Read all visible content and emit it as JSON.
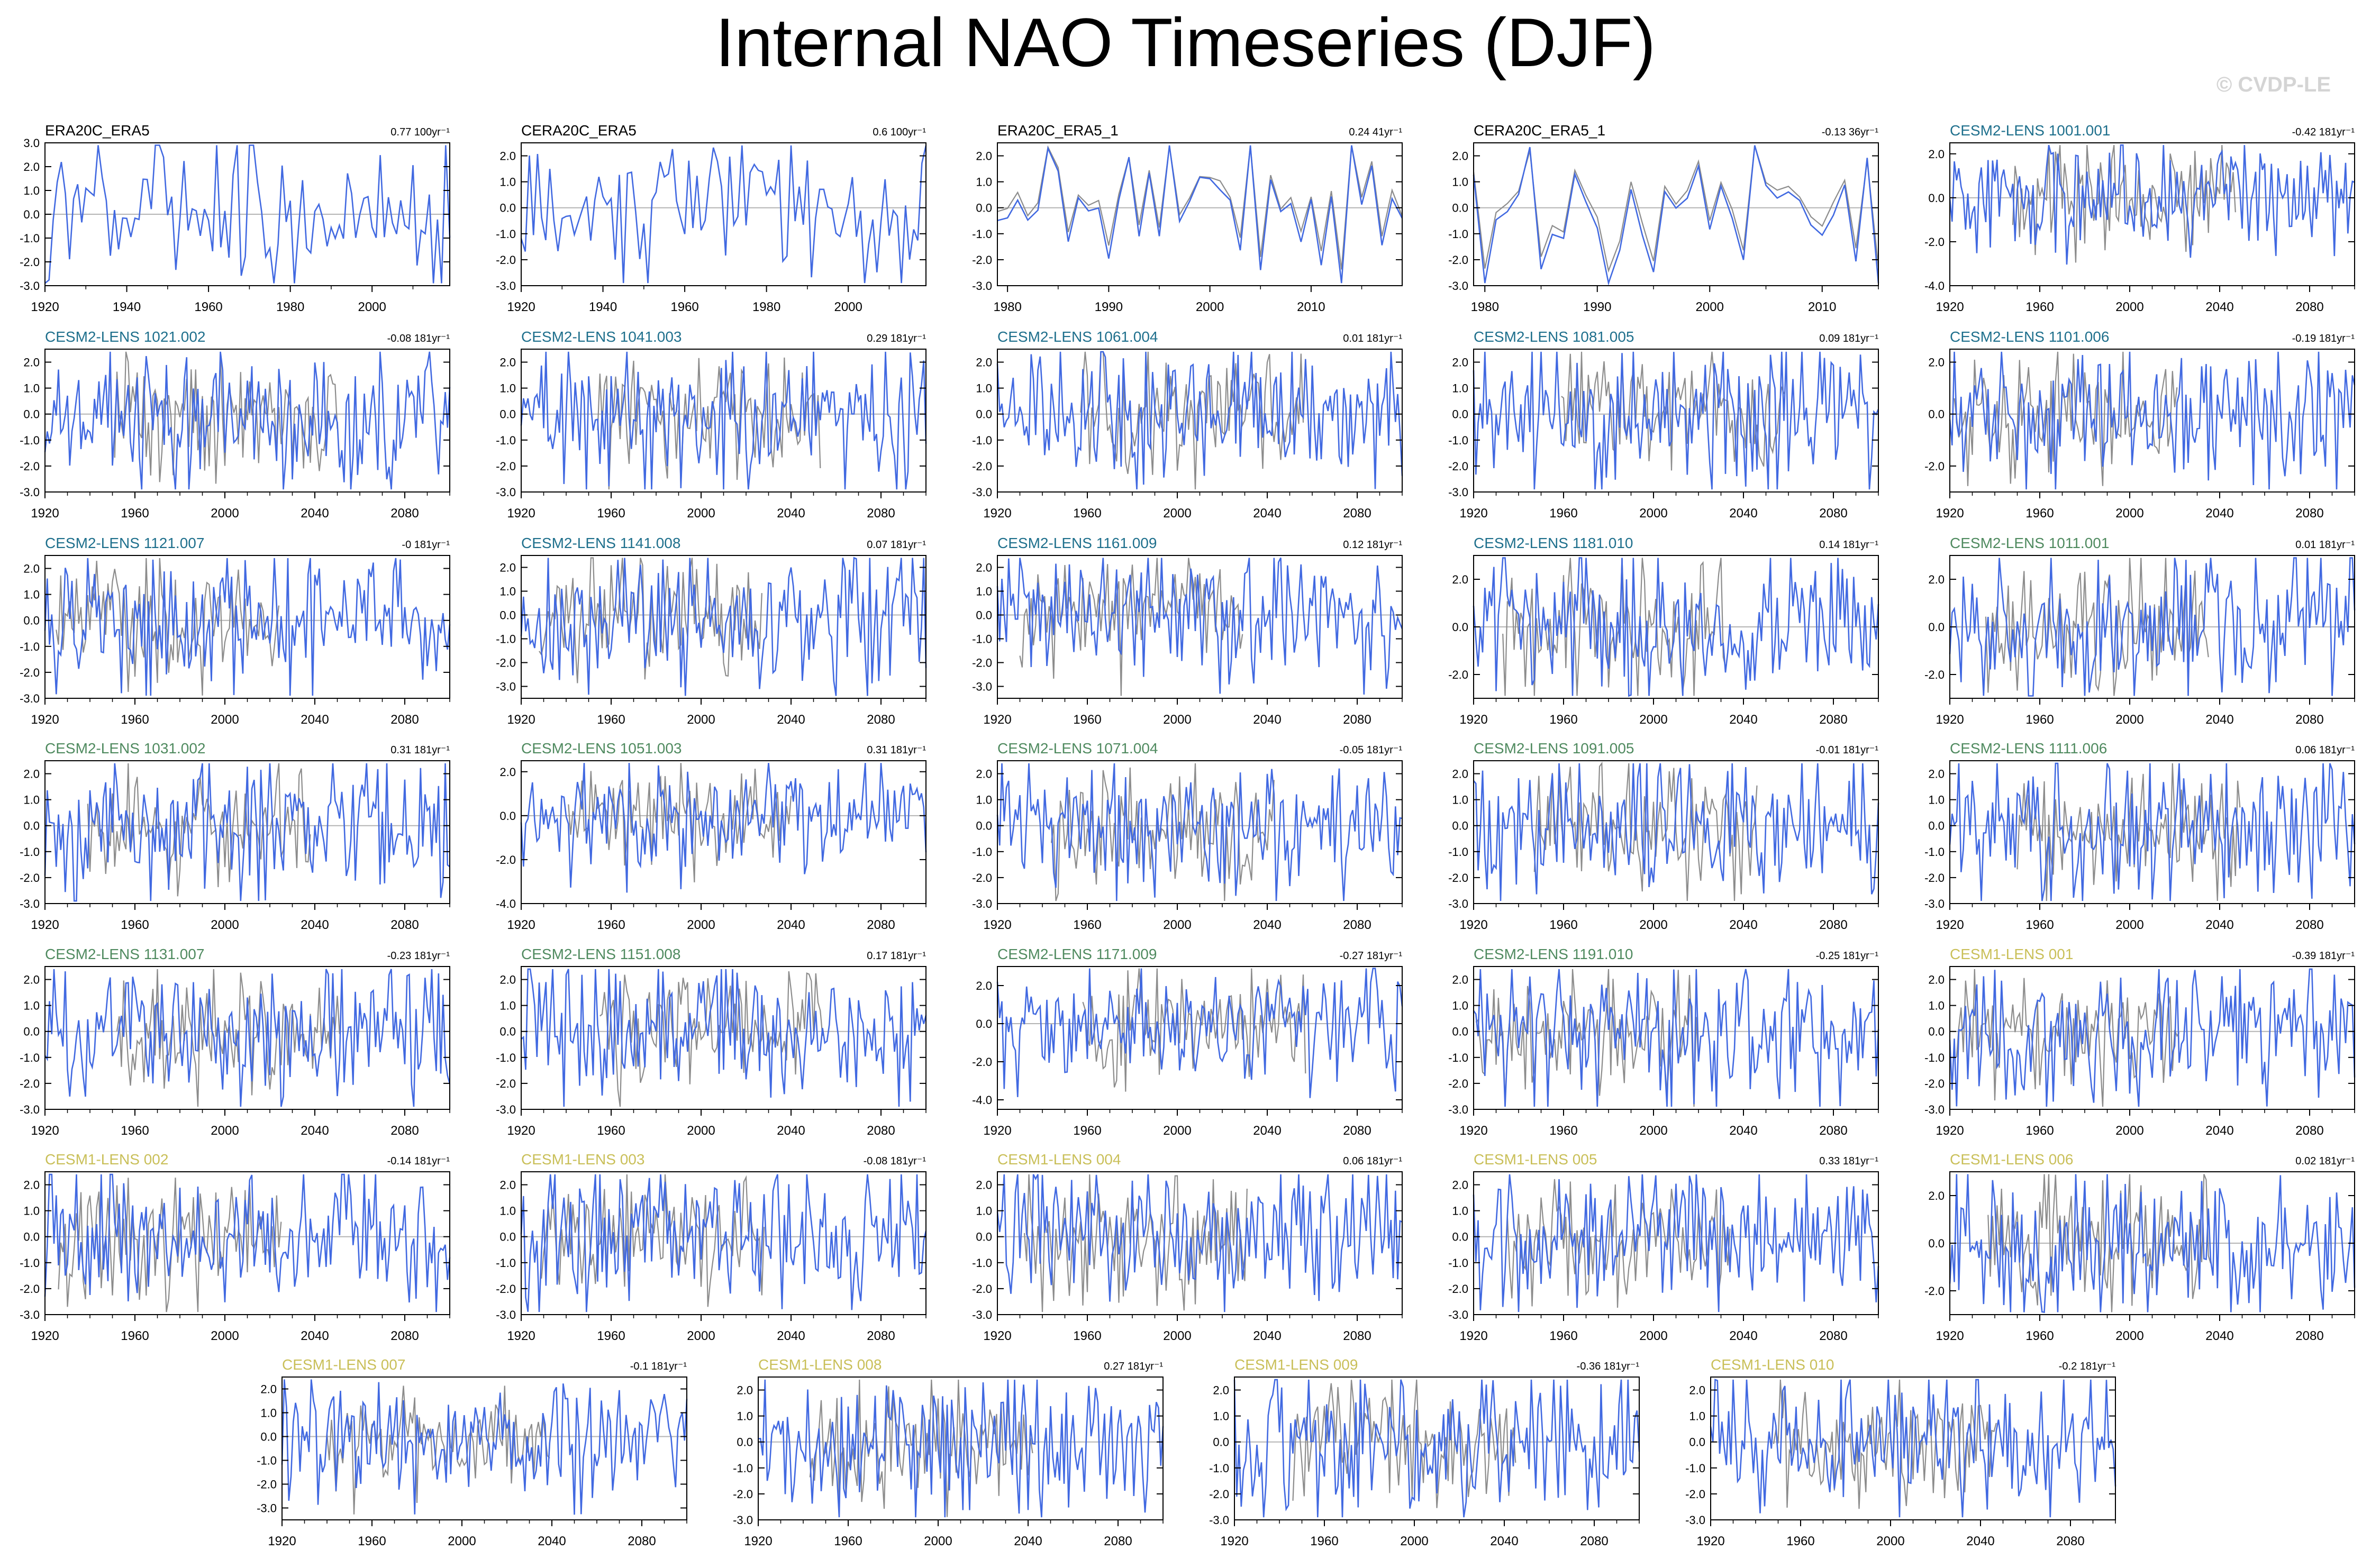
{
  "title": "Internal NAO Timeseries (DJF)",
  "watermark": "© CVDP-LE",
  "colors": {
    "obs": "#000000",
    "cesm2_macro": "#1e6f8c",
    "cesm2_smbb": "#4f8a5f",
    "cesm1": "#c9bf58",
    "model_line": "#4169e1",
    "obs_line": "#8c8c8c",
    "zero_line": "#b4b4b4"
  },
  "chart_data": [
    {
      "type": "line",
      "title": "ERA20C_ERA5",
      "trend": "0.77 100yr⁻¹",
      "group": "obs",
      "xlim": [
        1920,
        2019
      ],
      "ylim": [
        -3.0,
        3.0
      ],
      "yticks": [
        "3.0",
        "2.0",
        "1.0",
        "0.0",
        "-1.0",
        "-2.0",
        "-3.0"
      ],
      "xticks": [
        "1920",
        "1940",
        "1960",
        "1980",
        "2000"
      ]
    },
    {
      "type": "line",
      "title": "CERA20C_ERA5",
      "trend": "0.6 100yr⁻¹",
      "group": "obs",
      "xlim": [
        1920,
        2019
      ],
      "ylim": [
        -3.0,
        2.5
      ],
      "yticks": [
        "2.0",
        "1.0",
        "0.0",
        "-1.0",
        "-2.0",
        "-3.0"
      ],
      "xticks": [
        "1920",
        "1940",
        "1960",
        "1980",
        "2000"
      ]
    },
    {
      "type": "line",
      "title": "ERA20C_ERA5_1",
      "trend": "0.24 41yr⁻¹",
      "group": "obs",
      "xlim": [
        1979,
        2019
      ],
      "ylim": [
        -3.0,
        2.5
      ],
      "yticks": [
        "2.0",
        "1.0",
        "0.0",
        "-1.0",
        "-2.0",
        "-3.0"
      ],
      "xticks": [
        "1980",
        "1990",
        "2000",
        "2010"
      ],
      "overlay": true
    },
    {
      "type": "line",
      "title": "CERA20C_ERA5_1",
      "trend": "-0.13 36yr⁻¹",
      "group": "obs",
      "xlim": [
        1979,
        2015
      ],
      "ylim": [
        -3.0,
        2.5
      ],
      "yticks": [
        "2.0",
        "1.0",
        "0.0",
        "-1.0",
        "-2.0",
        "-3.0"
      ],
      "xticks": [
        "1980",
        "1990",
        "2000",
        "2010"
      ],
      "overlay": true
    },
    {
      "type": "line",
      "title": "CESM2-LENS 1001.001",
      "trend": "-0.42 181yr⁻¹",
      "group": "cesm2_macro",
      "xlim": [
        1920,
        2100
      ],
      "ylim": [
        -4.0,
        2.5
      ],
      "yticks": [
        "2.0",
        "0.0",
        "-2.0",
        "-4.0"
      ],
      "xticks": [
        "1920",
        "1960",
        "2000",
        "2040",
        "2080"
      ]
    },
    {
      "type": "line",
      "title": "CESM2-LENS 1021.002",
      "trend": "-0.08 181yr⁻¹",
      "group": "cesm2_macro",
      "xlim": [
        1920,
        2100
      ],
      "ylim": [
        -3.0,
        2.5
      ],
      "yticks": [
        "2.0",
        "1.0",
        "0.0",
        "-1.0",
        "-2.0",
        "-3.0"
      ],
      "xticks": [
        "1920",
        "1960",
        "2000",
        "2040",
        "2080"
      ]
    },
    {
      "type": "line",
      "title": "CESM2-LENS 1041.003",
      "trend": "0.29 181yr⁻¹",
      "group": "cesm2_macro",
      "xlim": [
        1920,
        2100
      ],
      "ylim": [
        -3.0,
        2.5
      ],
      "yticks": [
        "2.0",
        "1.0",
        "0.0",
        "-1.0",
        "-2.0",
        "-3.0"
      ],
      "xticks": [
        "1920",
        "1960",
        "2000",
        "2040",
        "2080"
      ]
    },
    {
      "type": "line",
      "title": "CESM2-LENS 1061.004",
      "trend": "0.01 181yr⁻¹",
      "group": "cesm2_macro",
      "xlim": [
        1920,
        2100
      ],
      "ylim": [
        -3.0,
        2.5
      ],
      "yticks": [
        "2.0",
        "1.0",
        "0.0",
        "-1.0",
        "-2.0",
        "-3.0"
      ],
      "xticks": [
        "1920",
        "1960",
        "2000",
        "2040",
        "2080"
      ]
    },
    {
      "type": "line",
      "title": "CESM2-LENS 1081.005",
      "trend": "0.09 181yr⁻¹",
      "group": "cesm2_macro",
      "xlim": [
        1920,
        2100
      ],
      "ylim": [
        -3.0,
        2.5
      ],
      "yticks": [
        "2.0",
        "1.0",
        "0.0",
        "-1.0",
        "-2.0",
        "-3.0"
      ],
      "xticks": [
        "1920",
        "1960",
        "2000",
        "2040",
        "2080"
      ]
    },
    {
      "type": "line",
      "title": "CESM2-LENS 1101.006",
      "trend": "-0.19 181yr⁻¹",
      "group": "cesm2_macro",
      "xlim": [
        1920,
        2100
      ],
      "ylim": [
        -3.0,
        2.5
      ],
      "yticks": [
        "2.0",
        "0.0",
        "-2.0"
      ],
      "xticks": [
        "1920",
        "1960",
        "2000",
        "2040",
        "2080"
      ]
    },
    {
      "type": "line",
      "title": "CESM2-LENS 1121.007",
      "trend": "-0 181yr⁻¹",
      "group": "cesm2_macro",
      "xlim": [
        1920,
        2100
      ],
      "ylim": [
        -3.0,
        2.5
      ],
      "yticks": [
        "2.0",
        "1.0",
        "0.0",
        "-1.0",
        "-2.0",
        "-3.0"
      ],
      "xticks": [
        "1920",
        "1960",
        "2000",
        "2040",
        "2080"
      ]
    },
    {
      "type": "line",
      "title": "CESM2-LENS 1141.008",
      "trend": "0.07 181yr⁻¹",
      "group": "cesm2_macro",
      "xlim": [
        1920,
        2100
      ],
      "ylim": [
        -3.5,
        2.5
      ],
      "yticks": [
        "2.0",
        "1.0",
        "0.0",
        "-1.0",
        "-2.0",
        "-3.0"
      ],
      "xticks": [
        "1920",
        "1960",
        "2000",
        "2040",
        "2080"
      ]
    },
    {
      "type": "line",
      "title": "CESM2-LENS 1161.009",
      "trend": "0.12 181yr⁻¹",
      "group": "cesm2_macro",
      "xlim": [
        1920,
        2100
      ],
      "ylim": [
        -3.5,
        2.5
      ],
      "yticks": [
        "2.0",
        "1.0",
        "0.0",
        "-1.0",
        "-2.0",
        "-3.0"
      ],
      "xticks": [
        "1920",
        "1960",
        "2000",
        "2040",
        "2080"
      ]
    },
    {
      "type": "line",
      "title": "CESM2-LENS 1181.010",
      "trend": "0.14 181yr⁻¹",
      "group": "cesm2_macro",
      "xlim": [
        1920,
        2100
      ],
      "ylim": [
        -3.0,
        3.0
      ],
      "yticks": [
        "2.0",
        "0.0",
        "-2.0"
      ],
      "xticks": [
        "1920",
        "1960",
        "2000",
        "2040",
        "2080"
      ]
    },
    {
      "type": "line",
      "title": "CESM2-LENS 1011.001",
      "trend": "0.01 181yr⁻¹",
      "group": "cesm2_smbb",
      "xlim": [
        1920,
        2100
      ],
      "ylim": [
        -3.0,
        3.0
      ],
      "yticks": [
        "2.0",
        "0.0",
        "-2.0"
      ],
      "xticks": [
        "1920",
        "1960",
        "2000",
        "2040",
        "2080"
      ]
    },
    {
      "type": "line",
      "title": "CESM2-LENS 1031.002",
      "trend": "0.31 181yr⁻¹",
      "group": "cesm2_smbb",
      "xlim": [
        1920,
        2100
      ],
      "ylim": [
        -3.0,
        2.5
      ],
      "yticks": [
        "2.0",
        "1.0",
        "0.0",
        "-1.0",
        "-2.0",
        "-3.0"
      ],
      "xticks": [
        "1920",
        "1960",
        "2000",
        "2040",
        "2080"
      ]
    },
    {
      "type": "line",
      "title": "CESM2-LENS 1051.003",
      "trend": "0.31 181yr⁻¹",
      "group": "cesm2_smbb",
      "xlim": [
        1920,
        2100
      ],
      "ylim": [
        -4.0,
        2.5
      ],
      "yticks": [
        "2.0",
        "0.0",
        "-2.0",
        "-4.0"
      ],
      "xticks": [
        "1920",
        "1960",
        "2000",
        "2040",
        "2080"
      ]
    },
    {
      "type": "line",
      "title": "CESM2-LENS 1071.004",
      "trend": "-0.05 181yr⁻¹",
      "group": "cesm2_smbb",
      "xlim": [
        1920,
        2100
      ],
      "ylim": [
        -3.0,
        2.5
      ],
      "yticks": [
        "2.0",
        "1.0",
        "0.0",
        "-1.0",
        "-2.0",
        "-3.0"
      ],
      "xticks": [
        "1920",
        "1960",
        "2000",
        "2040",
        "2080"
      ]
    },
    {
      "type": "line",
      "title": "CESM2-LENS 1091.005",
      "trend": "-0.01 181yr⁻¹",
      "group": "cesm2_smbb",
      "xlim": [
        1920,
        2100
      ],
      "ylim": [
        -3.0,
        2.5
      ],
      "yticks": [
        "2.0",
        "1.0",
        "0.0",
        "-1.0",
        "-2.0",
        "-3.0"
      ],
      "xticks": [
        "1920",
        "1960",
        "2000",
        "2040",
        "2080"
      ]
    },
    {
      "type": "line",
      "title": "CESM2-LENS 1111.006",
      "trend": "0.06 181yr⁻¹",
      "group": "cesm2_smbb",
      "xlim": [
        1920,
        2100
      ],
      "ylim": [
        -3.0,
        2.5
      ],
      "yticks": [
        "2.0",
        "1.0",
        "0.0",
        "-1.0",
        "-2.0",
        "-3.0"
      ],
      "xticks": [
        "1920",
        "1960",
        "2000",
        "2040",
        "2080"
      ]
    },
    {
      "type": "line",
      "title": "CESM2-LENS 1131.007",
      "trend": "-0.23 181yr⁻¹",
      "group": "cesm2_smbb",
      "xlim": [
        1920,
        2100
      ],
      "ylim": [
        -3.0,
        2.5
      ],
      "yticks": [
        "2.0",
        "1.0",
        "0.0",
        "-1.0",
        "-2.0",
        "-3.0"
      ],
      "xticks": [
        "1920",
        "1960",
        "2000",
        "2040",
        "2080"
      ]
    },
    {
      "type": "line",
      "title": "CESM2-LENS 1151.008",
      "trend": "0.17 181yr⁻¹",
      "group": "cesm2_smbb",
      "xlim": [
        1920,
        2100
      ],
      "ylim": [
        -3.0,
        2.5
      ],
      "yticks": [
        "2.0",
        "1.0",
        "0.0",
        "-1.0",
        "-2.0",
        "-3.0"
      ],
      "xticks": [
        "1920",
        "1960",
        "2000",
        "2040",
        "2080"
      ]
    },
    {
      "type": "line",
      "title": "CESM2-LENS 1171.009",
      "trend": "-0.27 181yr⁻¹",
      "group": "cesm2_smbb",
      "xlim": [
        1920,
        2100
      ],
      "ylim": [
        -4.5,
        3.0
      ],
      "yticks": [
        "2.0",
        "0.0",
        "-2.0",
        "-4.0"
      ],
      "xticks": [
        "1920",
        "1960",
        "2000",
        "2040",
        "2080"
      ]
    },
    {
      "type": "line",
      "title": "CESM2-LENS 1191.010",
      "trend": "-0.25 181yr⁻¹",
      "group": "cesm2_smbb",
      "xlim": [
        1920,
        2100
      ],
      "ylim": [
        -3.0,
        2.5
      ],
      "yticks": [
        "2.0",
        "1.0",
        "0.0",
        "-1.0",
        "-2.0",
        "-3.0"
      ],
      "xticks": [
        "1920",
        "1960",
        "2000",
        "2040",
        "2080"
      ]
    },
    {
      "type": "line",
      "title": "CESM1-LENS 001",
      "trend": "-0.39 181yr⁻¹",
      "group": "cesm1",
      "xlim": [
        1920,
        2100
      ],
      "ylim": [
        -3.0,
        2.5
      ],
      "yticks": [
        "2.0",
        "1.0",
        "0.0",
        "-1.0",
        "-2.0",
        "-3.0"
      ],
      "xticks": [
        "1920",
        "1960",
        "2000",
        "2040",
        "2080"
      ]
    },
    {
      "type": "line",
      "title": "CESM1-LENS 002",
      "trend": "-0.14 181yr⁻¹",
      "group": "cesm1",
      "xlim": [
        1920,
        2100
      ],
      "ylim": [
        -3.0,
        2.5
      ],
      "yticks": [
        "2.0",
        "1.0",
        "0.0",
        "-1.0",
        "-2.0",
        "-3.0"
      ],
      "xticks": [
        "1920",
        "1960",
        "2000",
        "2040",
        "2080"
      ]
    },
    {
      "type": "line",
      "title": "CESM1-LENS 003",
      "trend": "-0.08 181yr⁻¹",
      "group": "cesm1",
      "xlim": [
        1920,
        2100
      ],
      "ylim": [
        -3.0,
        2.5
      ],
      "yticks": [
        "2.0",
        "1.0",
        "0.0",
        "-1.0",
        "-2.0",
        "-3.0"
      ],
      "xticks": [
        "1920",
        "1960",
        "2000",
        "2040",
        "2080"
      ]
    },
    {
      "type": "line",
      "title": "CESM1-LENS 004",
      "trend": "0.06 181yr⁻¹",
      "group": "cesm1",
      "xlim": [
        1920,
        2100
      ],
      "ylim": [
        -3.0,
        2.5
      ],
      "yticks": [
        "2.0",
        "1.0",
        "0.0",
        "-1.0",
        "-2.0",
        "-3.0"
      ],
      "xticks": [
        "1920",
        "1960",
        "2000",
        "2040",
        "2080"
      ]
    },
    {
      "type": "line",
      "title": "CESM1-LENS 005",
      "trend": "0.33 181yr⁻¹",
      "group": "cesm1",
      "xlim": [
        1920,
        2100
      ],
      "ylim": [
        -3.0,
        2.5
      ],
      "yticks": [
        "2.0",
        "1.0",
        "0.0",
        "-1.0",
        "-2.0",
        "-3.0"
      ],
      "xticks": [
        "1920",
        "1960",
        "2000",
        "2040",
        "2080"
      ]
    },
    {
      "type": "line",
      "title": "CESM1-LENS 006",
      "trend": "0.02 181yr⁻¹",
      "group": "cesm1",
      "xlim": [
        1920,
        2100
      ],
      "ylim": [
        -3.0,
        3.0
      ],
      "yticks": [
        "2.0",
        "0.0",
        "-2.0"
      ],
      "xticks": [
        "1920",
        "1960",
        "2000",
        "2040",
        "2080"
      ]
    },
    {
      "type": "line",
      "title": "CESM1-LENS 007",
      "trend": "-0.1 181yr⁻¹",
      "group": "cesm1",
      "xlim": [
        1920,
        2100
      ],
      "ylim": [
        -3.5,
        2.5
      ],
      "yticks": [
        "2.0",
        "1.0",
        "0.0",
        "-1.0",
        "-2.0",
        "-3.0"
      ],
      "xticks": [
        "1920",
        "1960",
        "2000",
        "2040",
        "2080"
      ]
    },
    {
      "type": "line",
      "title": "CESM1-LENS 008",
      "trend": "0.27 181yr⁻¹",
      "group": "cesm1",
      "xlim": [
        1920,
        2100
      ],
      "ylim": [
        -3.0,
        2.5
      ],
      "yticks": [
        "2.0",
        "1.0",
        "0.0",
        "-1.0",
        "-2.0",
        "-3.0"
      ],
      "xticks": [
        "1920",
        "1960",
        "2000",
        "2040",
        "2080"
      ]
    },
    {
      "type": "line",
      "title": "CESM1-LENS 009",
      "trend": "-0.36 181yr⁻¹",
      "group": "cesm1",
      "xlim": [
        1920,
        2100
      ],
      "ylim": [
        -3.0,
        2.5
      ],
      "yticks": [
        "2.0",
        "1.0",
        "0.0",
        "-1.0",
        "-2.0",
        "-3.0"
      ],
      "xticks": [
        "1920",
        "1960",
        "2000",
        "2040",
        "2080"
      ]
    },
    {
      "type": "line",
      "title": "CESM1-LENS 010",
      "trend": "-0.2 181yr⁻¹",
      "group": "cesm1",
      "xlim": [
        1920,
        2100
      ],
      "ylim": [
        -3.0,
        2.5
      ],
      "yticks": [
        "2.0",
        "1.0",
        "0.0",
        "-1.0",
        "-2.0",
        "-3.0"
      ],
      "xticks": [
        "1920",
        "1960",
        "2000",
        "2040",
        "2080"
      ]
    }
  ]
}
